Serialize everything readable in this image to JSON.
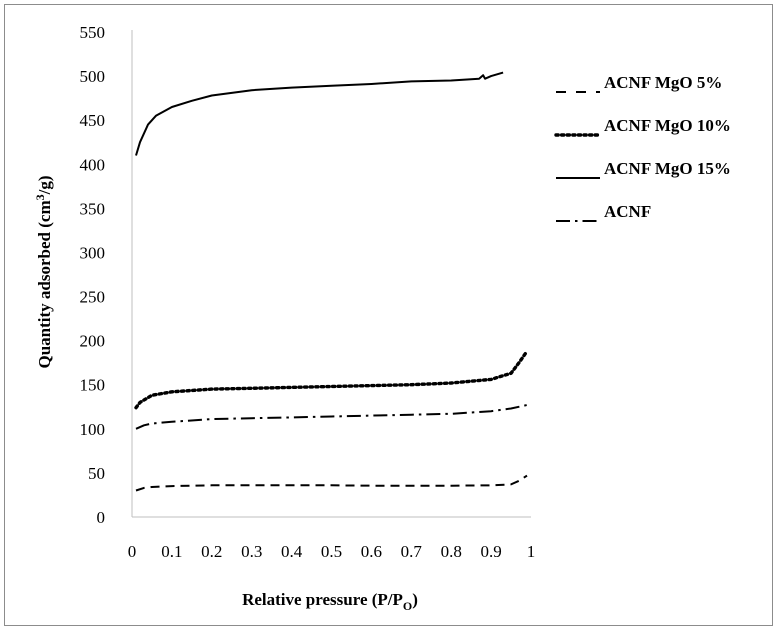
{
  "chart_data": {
    "type": "line",
    "title": "",
    "xlabel": "Relative pressure (P/P",
    "xlabel_sub": "O",
    "xlabel_close": ")",
    "ylabel": "Quantity adsorbed (cm",
    "ylabel_sup": "3",
    "ylabel_close": "/g)",
    "xlim": [
      0,
      1
    ],
    "ylim": [
      0,
      550
    ],
    "x_ticks": [
      "0",
      "0.1",
      "0.2",
      "0.3",
      "0.4",
      "0.5",
      "0.6",
      "0.7",
      "0.8",
      "0.9",
      "1"
    ],
    "y_ticks": [
      "0",
      "50",
      "100",
      "150",
      "200",
      "250",
      "300",
      "350",
      "400",
      "450",
      "500",
      "550"
    ],
    "grid": false,
    "legend_position": "right",
    "series": [
      {
        "name": "ACNF MgO 5%",
        "style": "dashed",
        "color": "#000000",
        "x": [
          0.01,
          0.03,
          0.05,
          0.1,
          0.2,
          0.3,
          0.4,
          0.5,
          0.6,
          0.7,
          0.8,
          0.9,
          0.95,
          0.97,
          0.99
        ],
        "y": [
          30,
          33,
          34,
          35,
          36,
          36,
          36,
          36,
          35.5,
          35.5,
          35.5,
          36,
          37,
          41,
          47
        ]
      },
      {
        "name": "ACNF MgO 10%",
        "style": "dotted",
        "color": "#000000",
        "x": [
          0.01,
          0.02,
          0.05,
          0.1,
          0.2,
          0.3,
          0.4,
          0.5,
          0.6,
          0.7,
          0.8,
          0.9,
          0.95,
          0.97,
          0.99
        ],
        "y": [
          124,
          130,
          138,
          142,
          145,
          146,
          147,
          148,
          149,
          150,
          152,
          156,
          163,
          175,
          188
        ]
      },
      {
        "name": "ACNF MgO 15%",
        "style": "solid",
        "color": "#000000",
        "x": [
          0.01,
          0.02,
          0.04,
          0.06,
          0.1,
          0.15,
          0.2,
          0.3,
          0.4,
          0.5,
          0.6,
          0.7,
          0.8,
          0.87,
          0.88,
          0.885,
          0.9,
          0.93
        ],
        "y": [
          410,
          425,
          445,
          455,
          465,
          472,
          478,
          484,
          487,
          489,
          491,
          494,
          495,
          497,
          501,
          497,
          500,
          504
        ]
      },
      {
        "name": "ACNF",
        "style": "dash-dot",
        "color": "#000000",
        "x": [
          0.01,
          0.03,
          0.05,
          0.1,
          0.2,
          0.3,
          0.4,
          0.5,
          0.6,
          0.7,
          0.8,
          0.9,
          0.95,
          0.99
        ],
        "y": [
          100,
          104,
          106,
          108,
          111,
          112,
          113,
          114,
          115,
          116,
          117,
          120,
          123,
          127
        ]
      }
    ]
  }
}
